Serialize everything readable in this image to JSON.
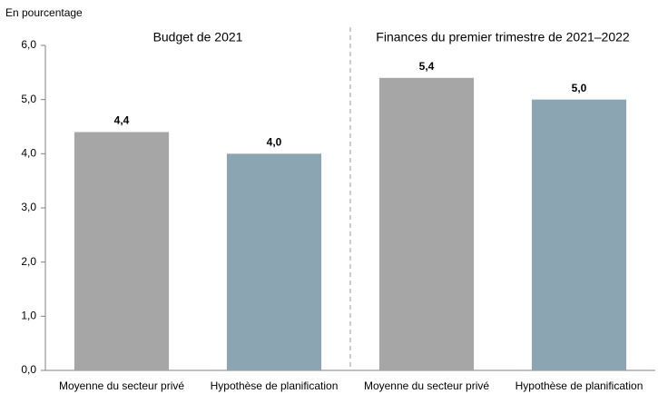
{
  "chart_data": {
    "type": "bar",
    "y_label": "En pourcentage",
    "groups": [
      "Budget de 2021",
      "Finances du premier trimestre de 2021–2022"
    ],
    "categories": [
      "Moyenne du secteur privé",
      "Hypothèse de planification",
      "Moyenne du secteur privé",
      "Hypothèse de planification"
    ],
    "values": [
      4.4,
      4.0,
      5.4,
      5.0
    ],
    "value_labels": [
      "4,4",
      "4,0",
      "5,4",
      "5,0"
    ],
    "colors": [
      "#a6a6a6",
      "#8ba5b3",
      "#a6a6a6",
      "#8ba5b3"
    ],
    "ylim": [
      0,
      6
    ],
    "yticks": [
      {
        "value": 0,
        "label": "0,0"
      },
      {
        "value": 1,
        "label": "1,0"
      },
      {
        "value": 2,
        "label": "2,0"
      },
      {
        "value": 3,
        "label": "3,0"
      },
      {
        "value": 4,
        "label": "4,0"
      },
      {
        "value": 5,
        "label": "5,0"
      },
      {
        "value": 6,
        "label": "6,0"
      }
    ],
    "grid": false
  }
}
